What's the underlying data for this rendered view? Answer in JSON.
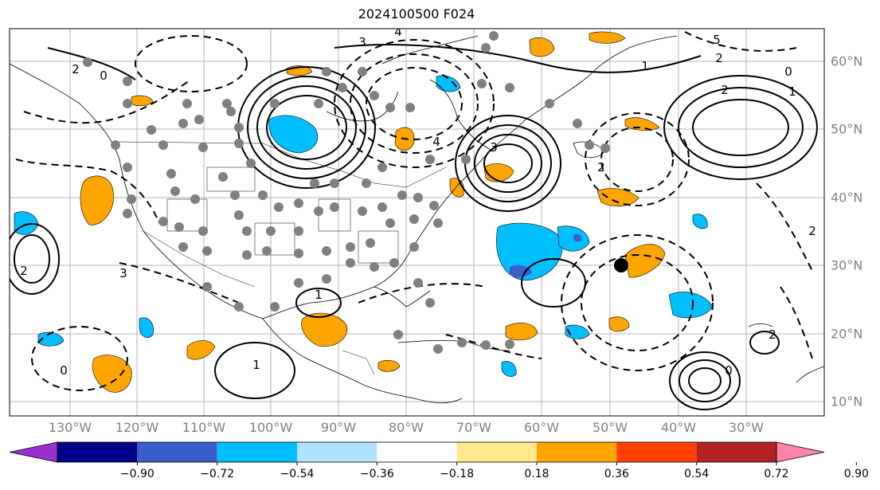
{
  "title": "2024100500 F024",
  "lon_labels": [
    "130°W",
    "120°W",
    "110°W",
    "100°W",
    "90°W",
    "80°W",
    "70°W",
    "60°W",
    "50°W",
    "40°W",
    "30°W"
  ],
  "lat_labels": [
    "60°N",
    "50°N",
    "40°N",
    "30°N",
    "20°N",
    "10°N"
  ],
  "colorbar": {
    "ticks": [
      "−0.90",
      "−0.72",
      "−0.54",
      "−0.36",
      "−0.18",
      "0.18",
      "0.36",
      "0.54",
      "0.72",
      "0.90"
    ],
    "colors": [
      "#9b30d0",
      "#00008b",
      "#3a5fcd",
      "#00bfff",
      "#b0e2ff",
      "#ffffff",
      "#ffe98c",
      "#ffa500",
      "#ff4000",
      "#b22222",
      "#ff82ab"
    ]
  },
  "contour_labels": [
    "2",
    "0",
    "3",
    "4",
    "5",
    "2",
    "1",
    "0",
    "2",
    "1",
    "2",
    "3",
    "4",
    "2",
    "0",
    "1",
    "2",
    "3",
    "1",
    "2",
    "0"
  ],
  "colors": {
    "positive_fill": "#ffa500",
    "negative_fill": "#00bfff",
    "strong_negative_fill": "#3a5fcd",
    "station_dot": "#808080",
    "marker": "#000000",
    "grid": "#b4b4b4"
  }
}
